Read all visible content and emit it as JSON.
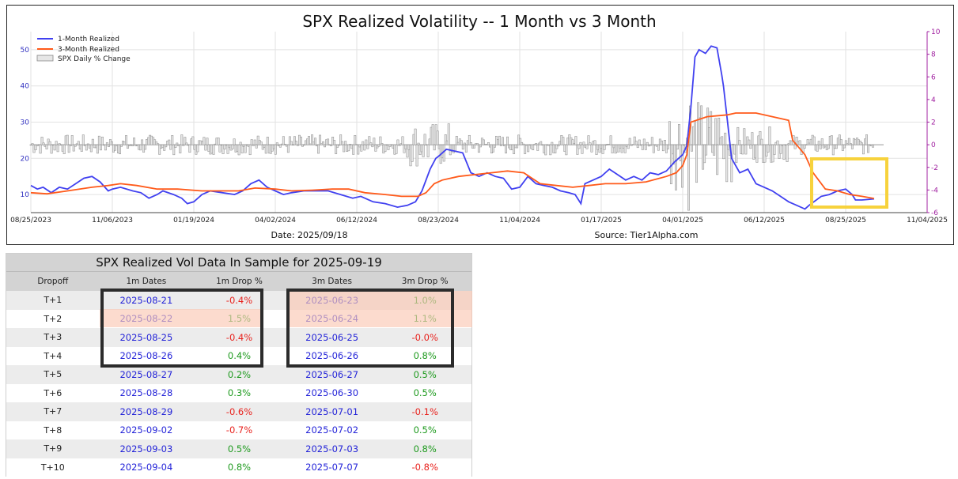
{
  "chart_data": {
    "type": "line",
    "title": "SPX Realized Volatility -- 1 Month vs 3 Month",
    "date_label": "Date: 2025/09/18",
    "source_label": "Source: Tier1Alpha.com",
    "x_tick_labels": [
      "08/25/2023",
      "11/06/2023",
      "01/19/2024",
      "04/02/2024",
      "06/12/2024",
      "08/23/2024",
      "11/04/2024",
      "01/17/2025",
      "04/01/2025",
      "06/12/2025",
      "08/25/2025",
      "11/04/2025"
    ],
    "ylim_left": [
      5,
      55
    ],
    "yticks_left": [
      10,
      20,
      30,
      40,
      50
    ],
    "ylim_right": [
      -6,
      10
    ],
    "yticks_right": [
      -6,
      -4,
      -2,
      0,
      2,
      4,
      6,
      8,
      10
    ],
    "legend": [
      "1-Month Realized",
      "3-Month Realized",
      "SPX Daily % Change"
    ],
    "colors": {
      "one_month": "#4040f0",
      "three_month": "#ff5a1a",
      "bars": "#b4b4b4",
      "right_axis": "#a020a0",
      "highlight": "#f7d23c"
    },
    "series": [
      {
        "name": "1-Month Realized",
        "points": [
          [
            0,
            12.5
          ],
          [
            0.08,
            11.5
          ],
          [
            0.15,
            12
          ],
          [
            0.25,
            10.5
          ],
          [
            0.35,
            12
          ],
          [
            0.45,
            11.5
          ],
          [
            0.55,
            13
          ],
          [
            0.65,
            14.5
          ],
          [
            0.75,
            15
          ],
          [
            0.85,
            13.5
          ],
          [
            0.95,
            11
          ],
          [
            1.0,
            11.5
          ],
          [
            1.1,
            12
          ],
          [
            1.25,
            11
          ],
          [
            1.35,
            10.5
          ],
          [
            1.45,
            9
          ],
          [
            1.55,
            10
          ],
          [
            1.62,
            11
          ],
          [
            1.75,
            10
          ],
          [
            1.85,
            9
          ],
          [
            1.92,
            7.5
          ],
          [
            2.0,
            8
          ],
          [
            2.1,
            10
          ],
          [
            2.2,
            11
          ],
          [
            2.35,
            10.5
          ],
          [
            2.5,
            10
          ],
          [
            2.6,
            11
          ],
          [
            2.7,
            13
          ],
          [
            2.8,
            14
          ],
          [
            2.9,
            12
          ],
          [
            3.0,
            11
          ],
          [
            3.1,
            10
          ],
          [
            3.2,
            10.5
          ],
          [
            3.35,
            11
          ],
          [
            3.5,
            11
          ],
          [
            3.65,
            11
          ],
          [
            3.8,
            10
          ],
          [
            3.95,
            9
          ],
          [
            4.05,
            9.5
          ],
          [
            4.2,
            8
          ],
          [
            4.35,
            7.5
          ],
          [
            4.5,
            6.5
          ],
          [
            4.62,
            7
          ],
          [
            4.72,
            8
          ],
          [
            4.8,
            11
          ],
          [
            4.9,
            17
          ],
          [
            4.97,
            20
          ],
          [
            5.0,
            20.5
          ],
          [
            5.1,
            22.5
          ],
          [
            5.2,
            22
          ],
          [
            5.3,
            21.5
          ],
          [
            5.4,
            16
          ],
          [
            5.5,
            15
          ],
          [
            5.6,
            16
          ],
          [
            5.7,
            15
          ],
          [
            5.8,
            14.5
          ],
          [
            5.9,
            11.5
          ],
          [
            6.0,
            12
          ],
          [
            6.1,
            15
          ],
          [
            6.2,
            13
          ],
          [
            6.3,
            12.5
          ],
          [
            6.4,
            12
          ],
          [
            6.5,
            11
          ],
          [
            6.6,
            10.5
          ],
          [
            6.68,
            10
          ],
          [
            6.75,
            7.5
          ],
          [
            6.8,
            13
          ],
          [
            6.9,
            14
          ],
          [
            7.0,
            15
          ],
          [
            7.1,
            17
          ],
          [
            7.2,
            15.5
          ],
          [
            7.3,
            14
          ],
          [
            7.4,
            15
          ],
          [
            7.5,
            14
          ],
          [
            7.6,
            16
          ],
          [
            7.7,
            15.5
          ],
          [
            7.8,
            16.5
          ],
          [
            7.9,
            19
          ],
          [
            8.0,
            21
          ],
          [
            8.05,
            23.5
          ],
          [
            8.1,
            34
          ],
          [
            8.15,
            48
          ],
          [
            8.2,
            50
          ],
          [
            8.28,
            49
          ],
          [
            8.35,
            51
          ],
          [
            8.42,
            50.5
          ],
          [
            8.48,
            43
          ],
          [
            8.5,
            40
          ],
          [
            8.55,
            30
          ],
          [
            8.6,
            20
          ],
          [
            8.7,
            16
          ],
          [
            8.8,
            17
          ],
          [
            8.9,
            13
          ],
          [
            9.0,
            12
          ],
          [
            9.1,
            11
          ],
          [
            9.2,
            9.5
          ],
          [
            9.3,
            8
          ],
          [
            9.4,
            7
          ],
          [
            9.5,
            6
          ],
          [
            9.55,
            7
          ],
          [
            9.7,
            9.5
          ],
          [
            9.8,
            10
          ],
          [
            9.9,
            11
          ],
          [
            10.0,
            11.5
          ],
          [
            10.08,
            10
          ],
          [
            10.12,
            8.5
          ],
          [
            10.2,
            8.5
          ],
          [
            10.35,
            8.8
          ]
        ]
      },
      {
        "name": "3-Month Realized",
        "points": [
          [
            0,
            10.5
          ],
          [
            0.2,
            10.2
          ],
          [
            0.45,
            11
          ],
          [
            0.75,
            12
          ],
          [
            0.95,
            12.5
          ],
          [
            1.1,
            13
          ],
          [
            1.3,
            12.5
          ],
          [
            1.55,
            11.5
          ],
          [
            1.8,
            11.5
          ],
          [
            2.1,
            11
          ],
          [
            2.35,
            11
          ],
          [
            2.55,
            11
          ],
          [
            2.75,
            11.8
          ],
          [
            3.0,
            11.5
          ],
          [
            3.2,
            11
          ],
          [
            3.45,
            11.2
          ],
          [
            3.7,
            11.5
          ],
          [
            3.9,
            11.5
          ],
          [
            4.1,
            10.5
          ],
          [
            4.35,
            10
          ],
          [
            4.55,
            9.5
          ],
          [
            4.75,
            9.5
          ],
          [
            4.85,
            10.5
          ],
          [
            4.95,
            13
          ],
          [
            5.05,
            14
          ],
          [
            5.25,
            15
          ],
          [
            5.45,
            15.5
          ],
          [
            5.65,
            16
          ],
          [
            5.85,
            16.5
          ],
          [
            6.05,
            16
          ],
          [
            6.25,
            13
          ],
          [
            6.45,
            12.5
          ],
          [
            6.65,
            12
          ],
          [
            6.85,
            12.5
          ],
          [
            7.05,
            13
          ],
          [
            7.3,
            13
          ],
          [
            7.55,
            13.5
          ],
          [
            7.8,
            15
          ],
          [
            7.92,
            16
          ],
          [
            8.0,
            18
          ],
          [
            8.05,
            21
          ],
          [
            8.1,
            30
          ],
          [
            8.3,
            31.5
          ],
          [
            8.55,
            32
          ],
          [
            8.65,
            32.5
          ],
          [
            8.9,
            32.5
          ],
          [
            9.1,
            31.5
          ],
          [
            9.3,
            30.5
          ],
          [
            9.35,
            25
          ],
          [
            9.5,
            21
          ],
          [
            9.6,
            16
          ],
          [
            9.75,
            11.5
          ],
          [
            9.9,
            11
          ],
          [
            10.05,
            10
          ],
          [
            10.2,
            9.5
          ],
          [
            10.35,
            8.9
          ]
        ]
      }
    ]
  },
  "table": {
    "title": "SPX Realized Vol Data In Sample for 2025-09-19",
    "headers": [
      "Dropoff",
      "1m Dates",
      "1m Drop %",
      "3m Dates",
      "3m Drop %"
    ],
    "rows": [
      {
        "dropoff": "T+1",
        "d1": "2025-08-21",
        "p1": "-0.4%",
        "d3": "2025-06-23",
        "p3": "1.0%"
      },
      {
        "dropoff": "T+2",
        "d1": "2025-08-22",
        "p1": "1.5%",
        "d3": "2025-06-24",
        "p3": "1.1%"
      },
      {
        "dropoff": "T+3",
        "d1": "2025-08-25",
        "p1": "-0.4%",
        "d3": "2025-06-25",
        "p3": "-0.0%"
      },
      {
        "dropoff": "T+4",
        "d1": "2025-08-26",
        "p1": "0.4%",
        "d3": "2025-06-26",
        "p3": "0.8%"
      },
      {
        "dropoff": "T+5",
        "d1": "2025-08-27",
        "p1": "0.2%",
        "d3": "2025-06-27",
        "p3": "0.5%"
      },
      {
        "dropoff": "T+6",
        "d1": "2025-08-28",
        "p1": "0.3%",
        "d3": "2025-06-30",
        "p3": "0.5%"
      },
      {
        "dropoff": "T+7",
        "d1": "2025-08-29",
        "p1": "-0.6%",
        "d3": "2025-07-01",
        "p3": "-0.1%"
      },
      {
        "dropoff": "T+8",
        "d1": "2025-09-02",
        "p1": "-0.7%",
        "d3": "2025-07-02",
        "p3": "0.5%"
      },
      {
        "dropoff": "T+9",
        "d1": "2025-09-03",
        "p1": "0.5%",
        "d3": "2025-07-03",
        "p3": "0.8%"
      },
      {
        "dropoff": "T+10",
        "d1": "2025-09-04",
        "p1": "0.8%",
        "d3": "2025-07-07",
        "p3": "-0.8%"
      }
    ]
  }
}
